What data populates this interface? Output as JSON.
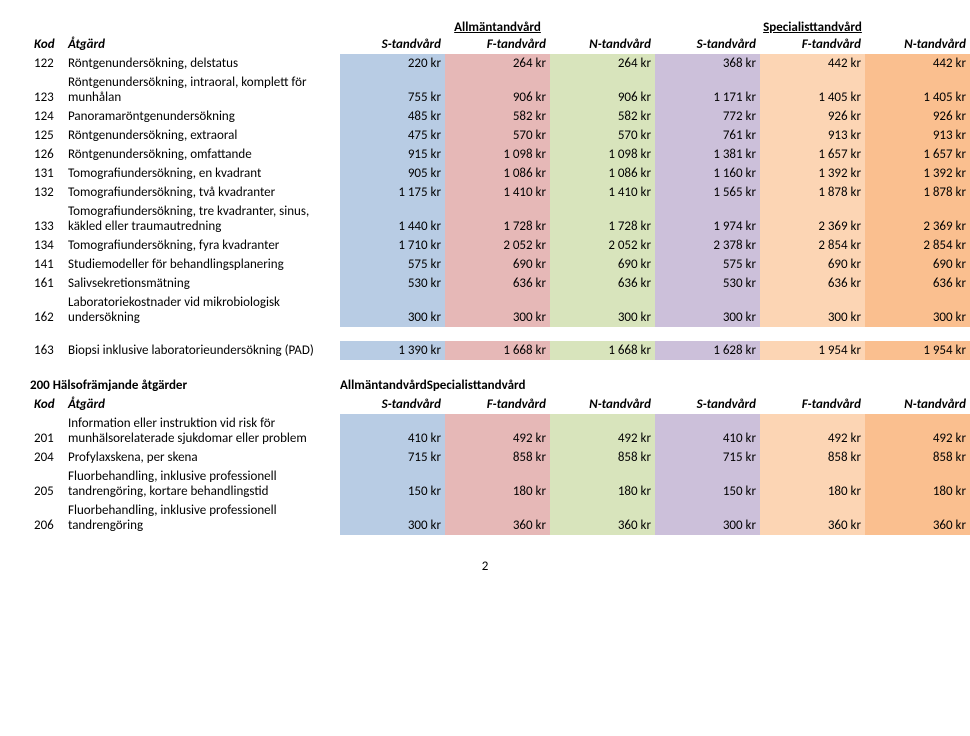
{
  "group_headers": {
    "allman": "Allmäntandvård",
    "special": "Specialisttandvård"
  },
  "col_headers": {
    "kod": "Kod",
    "atgard": "Åtgärd",
    "s": "S-tandvård",
    "f": "F-tandvård",
    "n": "N-tandvård"
  },
  "table1_rows": [
    {
      "kod": "122",
      "atgard": "Röntgenundersökning, delstatus",
      "v": [
        "220 kr",
        "264 kr",
        "264 kr",
        "368 kr",
        "442 kr",
        "442 kr"
      ]
    },
    {
      "kod": "123",
      "atgard": "Röntgenundersökning, intraoral, komplett för munhålan",
      "v": [
        "755 kr",
        "906 kr",
        "906 kr",
        "1 171 kr",
        "1 405 kr",
        "1 405 kr"
      ]
    },
    {
      "kod": "124",
      "atgard": "Panoramaröntgenundersökning",
      "v": [
        "485 kr",
        "582 kr",
        "582 kr",
        "772 kr",
        "926 kr",
        "926 kr"
      ]
    },
    {
      "kod": "125",
      "atgard": "Röntgenundersökning, extraoral",
      "v": [
        "475 kr",
        "570 kr",
        "570 kr",
        "761 kr",
        "913 kr",
        "913 kr"
      ]
    },
    {
      "kod": "126",
      "atgard": "Röntgenundersökning, omfattande",
      "v": [
        "915 kr",
        "1 098 kr",
        "1 098 kr",
        "1 381 kr",
        "1 657 kr",
        "1 657 kr"
      ]
    },
    {
      "kod": "131",
      "atgard": "Tomografiundersökning, en kvadrant",
      "v": [
        "905 kr",
        "1 086 kr",
        "1 086 kr",
        "1 160 kr",
        "1 392 kr",
        "1 392 kr"
      ]
    },
    {
      "kod": "132",
      "atgard": "Tomografiundersökning, två kvadranter",
      "v": [
        "1 175 kr",
        "1 410 kr",
        "1 410 kr",
        "1 565 kr",
        "1 878 kr",
        "1 878 kr"
      ]
    },
    {
      "kod": "133",
      "atgard": "Tomografiundersökning, tre kvadranter, sinus, käkled eller traumautredning",
      "v": [
        "1 440 kr",
        "1 728 kr",
        "1 728 kr",
        "1 974 kr",
        "2 369 kr",
        "2 369 kr"
      ]
    },
    {
      "kod": "134",
      "atgard": "Tomografiundersökning, fyra kvadranter",
      "v": [
        "1 710 kr",
        "2 052 kr",
        "2 052 kr",
        "2 378 kr",
        "2 854 kr",
        "2 854 kr"
      ]
    },
    {
      "kod": "141",
      "atgard": "Studiemodeller för behandlingsplanering",
      "v": [
        "575 kr",
        "690 kr",
        "690 kr",
        "575 kr",
        "690 kr",
        "690 kr"
      ]
    },
    {
      "kod": "161",
      "atgard": "Salivsekretionsmätning",
      "v": [
        "530 kr",
        "636 kr",
        "636 kr",
        "530 kr",
        "636 kr",
        "636 kr"
      ]
    },
    {
      "kod": "162",
      "atgard": "Laboratoriekostnader vid mikrobiologisk undersökning",
      "v": [
        "300 kr",
        "300 kr",
        "300 kr",
        "300 kr",
        "300 kr",
        "300 kr"
      ]
    }
  ],
  "table1_last": {
    "kod": "163",
    "atgard": "Biopsi inklusive laboratorieundersökning (PAD)",
    "v": [
      "1 390 kr",
      "1 668 kr",
      "1 668 kr",
      "1 628 kr",
      "1 954 kr",
      "1 954 kr"
    ]
  },
  "section200": {
    "code": "200",
    "title": "Hälsofrämjande åtgärder"
  },
  "table2_rows": [
    {
      "kod": "201",
      "atgard": "Information eller instruktion vid risk för munhälsorelaterade sjukdomar eller problem",
      "v": [
        "410 kr",
        "492 kr",
        "492 kr",
        "410 kr",
        "492 kr",
        "492 kr"
      ]
    },
    {
      "kod": "204",
      "atgard": "Profylaxskena, per skena",
      "v": [
        "715 kr",
        "858 kr",
        "858 kr",
        "715 kr",
        "858 kr",
        "858 kr"
      ]
    },
    {
      "kod": "205",
      "atgard": "Fluorbehandling, inklusive professionell tandrengöring, kortare behandlingstid",
      "v": [
        "150 kr",
        "180 kr",
        "180 kr",
        "150 kr",
        "180 kr",
        "180 kr"
      ]
    },
    {
      "kod": "206",
      "atgard": "Fluorbehandling, inklusive professionell tandrengöring",
      "v": [
        "300 kr",
        "360 kr",
        "360 kr",
        "300 kr",
        "360 kr",
        "360 kr"
      ]
    }
  ],
  "page_number": "2",
  "colors": {
    "c1": "#b8cce4",
    "c2": "#e6b8b7",
    "c3": "#d8e4bc",
    "c4": "#ccc0da",
    "c5": "#fcd5b4",
    "c6": "#fabf8f"
  }
}
